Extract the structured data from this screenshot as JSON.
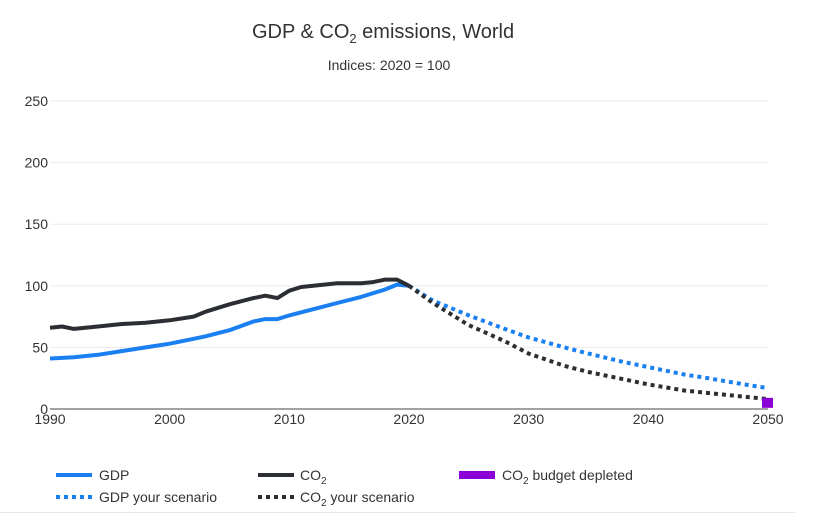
{
  "chart_data": {
    "type": "line",
    "title": "GDP & CO₂ emissions, World",
    "subtitle": "Indices: 2020 = 100",
    "xlim": [
      1990,
      2050
    ],
    "ylim": [
      0,
      250
    ],
    "x_ticks": [
      1990,
      2000,
      2010,
      2020,
      2030,
      2040,
      2050
    ],
    "y_ticks": [
      0,
      50,
      100,
      150,
      200,
      250
    ],
    "grid": true,
    "legend_placement": "bottom",
    "series": [
      {
        "name": "GDP",
        "color": "#1a7ff0",
        "style": "solid",
        "x": [
          1990,
          1992,
          1994,
          1996,
          1998,
          2000,
          2002,
          2003,
          2005,
          2007,
          2008,
          2009,
          2010,
          2012,
          2014,
          2016,
          2018,
          2019,
          2020
        ],
        "y": [
          41,
          42,
          44,
          47,
          50,
          53,
          57,
          59,
          64,
          71,
          73,
          73,
          76,
          81,
          86,
          91,
          97,
          101,
          100
        ]
      },
      {
        "name": "CO₂",
        "color": "#2b2f33",
        "style": "solid",
        "x": [
          1990,
          1991,
          1992,
          1994,
          1996,
          1998,
          2000,
          2002,
          2003,
          2005,
          2007,
          2008,
          2009,
          2010,
          2011,
          2012,
          2014,
          2016,
          2017,
          2018,
          2019,
          2020
        ],
        "y": [
          66,
          67,
          65,
          67,
          69,
          70,
          72,
          75,
          79,
          85,
          90,
          92,
          90,
          96,
          99,
          100,
          102,
          102,
          103,
          105,
          105,
          100
        ]
      },
      {
        "name": "GDP your scenario",
        "color": "#1a7ff0",
        "style": "dotted",
        "x": [
          2020,
          2022,
          2025,
          2028,
          2030,
          2033,
          2035,
          2038,
          2040,
          2043,
          2045,
          2048,
          2050
        ],
        "y": [
          100,
          88,
          76,
          65,
          58,
          50,
          45,
          38,
          34,
          28,
          25,
          20,
          17
        ]
      },
      {
        "name": "CO₂ your scenario",
        "color": "#2b2f33",
        "style": "dotted",
        "x": [
          2020,
          2022,
          2025,
          2028,
          2030,
          2033,
          2035,
          2038,
          2040,
          2043,
          2045,
          2048,
          2050
        ],
        "y": [
          100,
          86,
          68,
          55,
          45,
          35,
          30,
          24,
          20,
          15,
          13,
          10,
          8
        ]
      },
      {
        "name": "CO₂ budget depleted",
        "color": "#8a00d6",
        "style": "marker",
        "x": [
          2050
        ],
        "y": [
          5
        ]
      }
    ],
    "legend": [
      {
        "key": "GDP",
        "label": "GDP",
        "sub": "",
        "after": "",
        "style": "solid",
        "color": "#1a7ff0"
      },
      {
        "key": "CO2",
        "label": "CO",
        "sub": "2",
        "after": "",
        "style": "solid",
        "color": "#2b2f33"
      },
      {
        "key": "budget",
        "label": "CO",
        "sub": "2",
        "after": " budget depleted",
        "style": "box",
        "color": "#8a00d6"
      },
      {
        "key": "GDPscen",
        "label": "GDP your scenario",
        "sub": "",
        "after": "",
        "style": "dotted",
        "color": "#1a7ff0"
      },
      {
        "key": "CO2scen",
        "label": "CO",
        "sub": "2",
        "after": " your scenario",
        "style": "dotted",
        "color": "#2b2f33"
      }
    ]
  }
}
